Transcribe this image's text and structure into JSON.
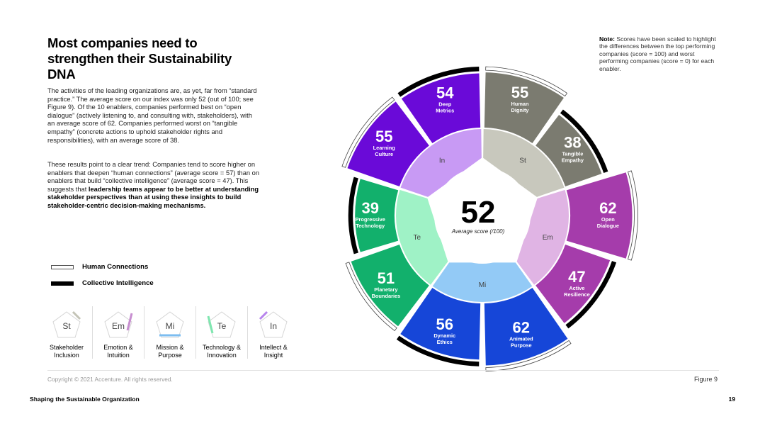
{
  "heading": "Most companies need to strengthen their Sustainability DNA",
  "body": {
    "p1": "The activities of the leading organizations are, as yet, far from “standard practice.” The average score on our index was only 52 (out of 100; see Figure 9). Of the 10 enablers, companies performed best on “open dialogue” (actively listening to, and consulting with, stakeholders), with an average score of 62. Companies performed worst on “tangible empathy” (concrete actions to uphold stakeholder rights and responsibilities), with an average score of 38.",
    "p2_plain": "These results point to a clear trend: Companies tend to score higher on enablers that deepen “human connections” (average score = 57) than on enablers that build “collective intelligence” (average score = 47). This suggests that ",
    "p2_bold": "leadership teams appear to be better at understanding stakeholder perspectives than at using these insights to build stakeholder-centric decision-making mechanisms."
  },
  "legend": {
    "human_connections": "Human Connections",
    "collective_intelligence": "Collective Intelligence"
  },
  "groups": [
    {
      "abbr": "St",
      "name": "Stakeholder Inclusion",
      "color": "#c8c8bd",
      "key_color": "#c3c3b6"
    },
    {
      "abbr": "Em",
      "name": "Emotion & Intuition",
      "color": "#e0b4e4",
      "key_color": "#c78ed0"
    },
    {
      "abbr": "Mi",
      "name": "Mission & Purpose",
      "color": "#93caf6",
      "key_color": "#7cbdf0"
    },
    {
      "abbr": "Te",
      "name": "Technology & Innovation",
      "color": "#9ff2c6",
      "key_color": "#7fe6b0"
    },
    {
      "abbr": "In",
      "name": "Intellect & Insight",
      "color": "#c89af4",
      "key_color": "#b783ec"
    }
  ],
  "note": {
    "label": "Note:",
    "text": " Scores have been scaled to highlight the differences between the top performing companies (score = 100) and worst performing companies (score = 0) for each enabler."
  },
  "chart_data": {
    "type": "polar-bar",
    "center_value": "52",
    "center_label": "Average score (/100)",
    "segments": [
      {
        "name": "Human Dignity",
        "value": 55,
        "group": "St",
        "type": "Human Connections",
        "color": "#7b7b70"
      },
      {
        "name": "Tangible Empathy",
        "value": 38,
        "group": "St",
        "type": "Collective Intelligence",
        "color": "#7b7b70"
      },
      {
        "name": "Open Dialogue",
        "value": 62,
        "group": "Em",
        "type": "Human Connections",
        "color": "#a53cab"
      },
      {
        "name": "Active Resilience",
        "value": 47,
        "group": "Em",
        "type": "Collective Intelligence",
        "color": "#a53cab"
      },
      {
        "name": "Animated Purpose",
        "value": 62,
        "group": "Mi",
        "type": "Human Connections",
        "color": "#1646d8"
      },
      {
        "name": "Dynamic Ethics",
        "value": 56,
        "group": "Mi",
        "type": "Collective Intelligence",
        "color": "#1646d8"
      },
      {
        "name": "Planetary Boundaries",
        "value": 51,
        "group": "Te",
        "type": "Human Connections",
        "color": "#12b06c"
      },
      {
        "name": "Progressive Technology",
        "value": 39,
        "group": "Te",
        "type": "Collective Intelligence",
        "color": "#12b06c"
      },
      {
        "name": "Learning Culture",
        "value": 55,
        "group": "In",
        "type": "Human Connections",
        "color": "#6a0ad8"
      },
      {
        "name": "Deep Metrics",
        "value": 54,
        "group": "In",
        "type": "Collective Intelligence",
        "color": "#6a0ad8"
      }
    ]
  },
  "footer": {
    "copyright": "Copyright © 2021 Accenture. All rights reserved.",
    "figure": "Figure 9",
    "report": "Shaping the Sustainable Organization",
    "page": "19"
  }
}
